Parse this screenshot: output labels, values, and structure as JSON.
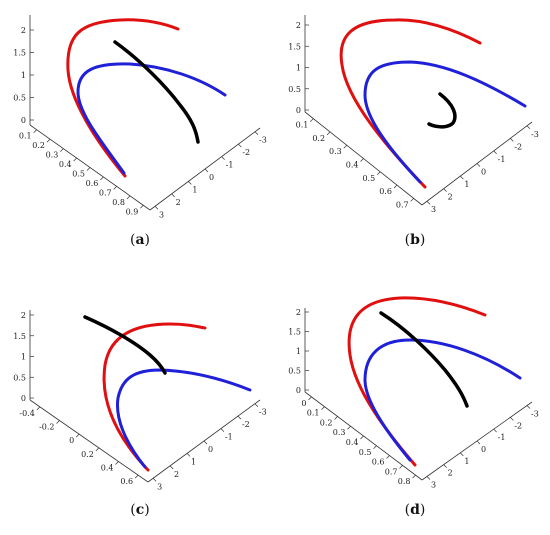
{
  "panels": [
    {
      "id": "a",
      "caption": "a",
      "z_ticks": [
        "2",
        "1.5",
        "1",
        "0.5",
        "0"
      ],
      "x_ticks": [
        "0.1",
        "0.2",
        "0.3",
        "0.4",
        "0.5",
        "0.6",
        "0.7",
        "0.8",
        "0.9"
      ],
      "y_ticks": [
        "-3",
        "-2",
        "-1",
        "0",
        "1",
        "2",
        "3"
      ]
    },
    {
      "id": "b",
      "caption": "b",
      "z_ticks": [
        "2",
        "1.5",
        "1",
        "0.5",
        "0"
      ],
      "x_ticks": [
        "0.1",
        "0.2",
        "0.3",
        "0.4",
        "0.5",
        "0.6",
        "0.7"
      ],
      "y_ticks": [
        "-3",
        "-2",
        "-1",
        "0",
        "1",
        "2",
        "3"
      ]
    },
    {
      "id": "c",
      "caption": "c",
      "z_ticks": [
        "2",
        "1.5",
        "1",
        "0.5",
        "0"
      ],
      "x_ticks": [
        "-0.4",
        "-0.2",
        "0",
        "0.2",
        "0.4",
        "0.6"
      ],
      "y_ticks": [
        "-3",
        "-2",
        "-1",
        "0",
        "1",
        "2",
        "3"
      ]
    },
    {
      "id": "d",
      "caption": "d",
      "z_ticks": [
        "2",
        "1.5",
        "1",
        "0.5",
        "0"
      ],
      "x_ticks": [
        "0",
        "0.1",
        "0.2",
        "0.3",
        "0.4",
        "0.5",
        "0.6",
        "0.7",
        "0.8"
      ],
      "y_ticks": [
        "-3",
        "-2",
        "-1",
        "0",
        "1",
        "2",
        "3"
      ]
    }
  ],
  "colors": {
    "red_curve": "#e01010",
    "blue_curve": "#2020d8",
    "black_curve": "#000000"
  }
}
